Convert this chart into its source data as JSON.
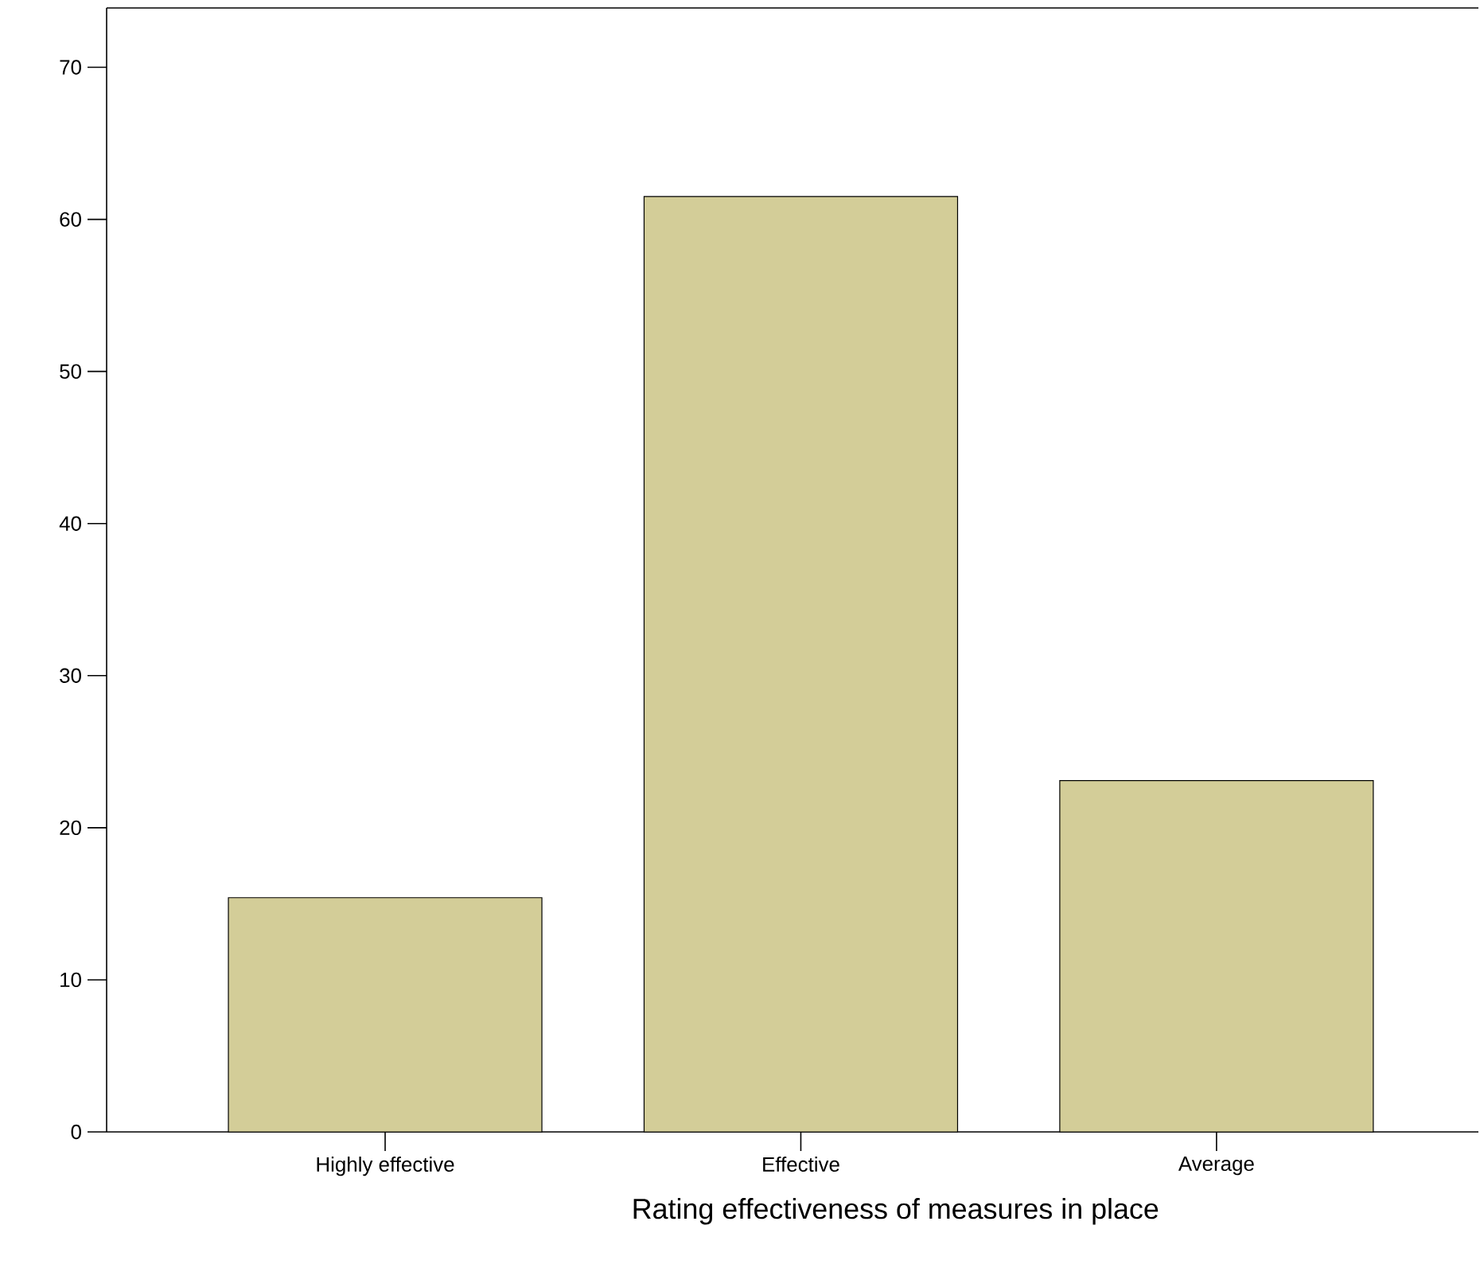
{
  "chart_data": {
    "type": "bar",
    "xlabel": "Rating effectiveness of measures in place",
    "categories": [
      "Highly effective",
      "Effective",
      "Average"
    ],
    "values": [
      15.4,
      61.5,
      23.1
    ],
    "color": "#d3cd98",
    "ylim": [
      0,
      73.9
    ],
    "yticks": [
      0,
      10,
      20,
      30,
      40,
      50,
      60,
      70
    ],
    "grid": false
  }
}
